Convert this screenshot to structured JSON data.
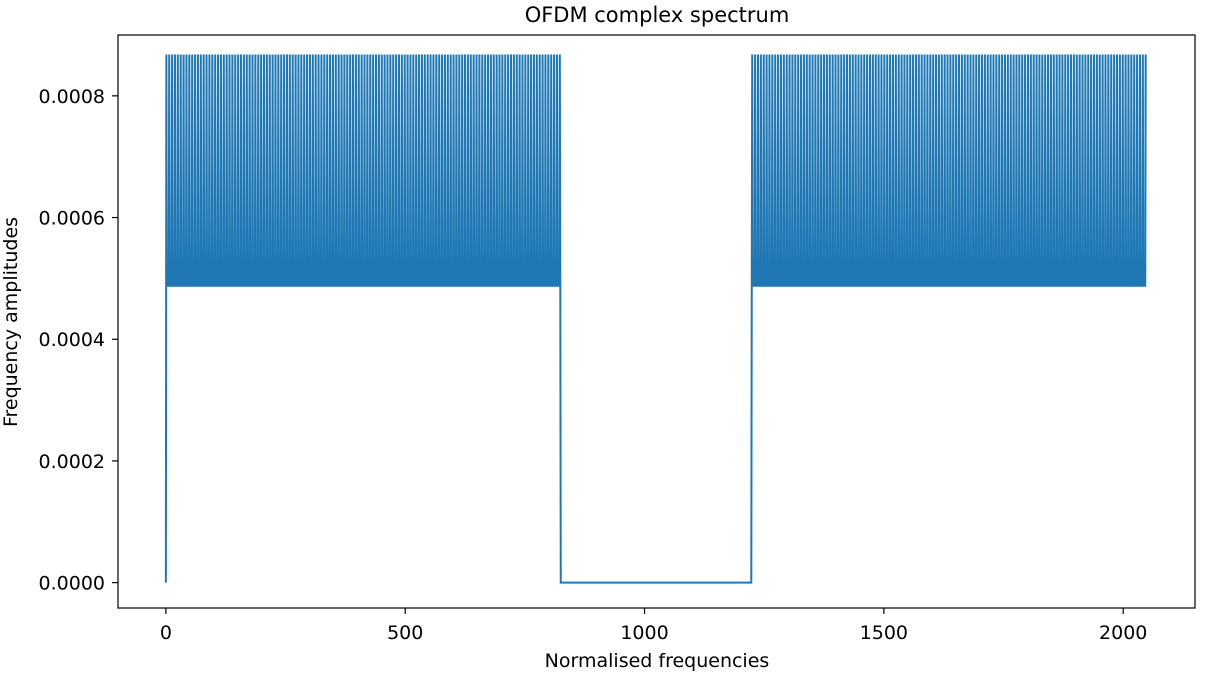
{
  "chart_data": {
    "type": "line",
    "title": "OFDM complex spectrum",
    "xlabel": "Normalised frequencies",
    "ylabel": "Frequency amplitudes",
    "xlim": [
      -100,
      2150
    ],
    "ylim": [
      -4.17e-05,
      0.0009
    ],
    "x_ticks": [
      {
        "value": 0,
        "label": "0"
      },
      {
        "value": 500,
        "label": "500"
      },
      {
        "value": 1000,
        "label": "1000"
      },
      {
        "value": 1500,
        "label": "1500"
      },
      {
        "value": 2000,
        "label": "2000"
      }
    ],
    "y_ticks": [
      {
        "value": 0.0,
        "label": "0.0000"
      },
      {
        "value": 0.0002,
        "label": "0.0002"
      },
      {
        "value": 0.0004,
        "label": "0.0004"
      },
      {
        "value": 0.0006,
        "label": "0.0006"
      },
      {
        "value": 0.0008,
        "label": "0.0008"
      }
    ],
    "grid": false,
    "series": [
      {
        "color": "#1f77b4",
        "x_range": [
          0,
          2047
        ],
        "dc_index": 0,
        "dc_value": 0.0,
        "active_bands": [
          [
            1,
            824
          ],
          [
            1224,
            2047
          ]
        ],
        "inactive_band": [
          825,
          1223
        ],
        "inactive_value": 0.0,
        "base_value": 0.000488,
        "pilot_value": 0.000868,
        "pilot_spacing": 6,
        "pilot_offset": 1
      }
    ]
  }
}
